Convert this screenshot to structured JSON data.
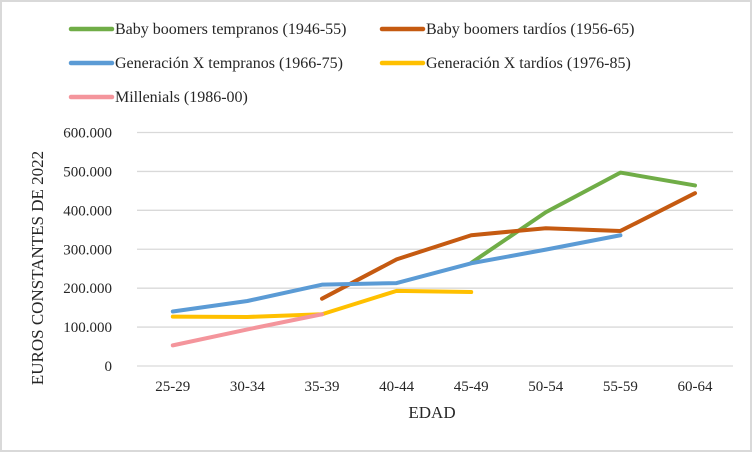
{
  "chart_data": {
    "type": "line",
    "title": "",
    "xlabel": "EDAD",
    "ylabel": "EUROS CONSTANTES DE 2022",
    "categories": [
      "25-29",
      "30-34",
      "35-39",
      "40-44",
      "45-49",
      "50-54",
      "55-59",
      "60-64"
    ],
    "ylim": [
      0,
      600000
    ],
    "yticks": [
      0,
      100000,
      200000,
      300000,
      400000,
      500000,
      600000
    ],
    "ytick_labels": [
      "0",
      "100.000",
      "200.000",
      "300.000",
      "400.000",
      "500.000",
      "600.000"
    ],
    "grid": true,
    "legend_position": "top",
    "series": [
      {
        "name": "Baby boomers tempranos (1946-55)",
        "color": "#70AD47",
        "values": [
          null,
          null,
          null,
          null,
          265000,
          395000,
          497000,
          464000
        ]
      },
      {
        "name": "Baby boomers tardíos (1956-65)",
        "color": "#C55A11",
        "values": [
          null,
          null,
          173000,
          274000,
          336000,
          354000,
          347000,
          444000
        ]
      },
      {
        "name": "Generación X tempranos (1966-75)",
        "color": "#5B9BD5",
        "values": [
          140000,
          167000,
          209000,
          213000,
          264000,
          299000,
          336000,
          null
        ]
      },
      {
        "name": "Generación X tardíos (1976-85)",
        "color": "#FFC000",
        "values": [
          127000,
          126000,
          133000,
          193000,
          190000,
          null,
          null,
          null
        ]
      },
      {
        "name": "Millenials (1986-00)",
        "color": "#F4959C",
        "values": [
          53000,
          94000,
          133000,
          null,
          null,
          null,
          null,
          null
        ]
      }
    ]
  }
}
